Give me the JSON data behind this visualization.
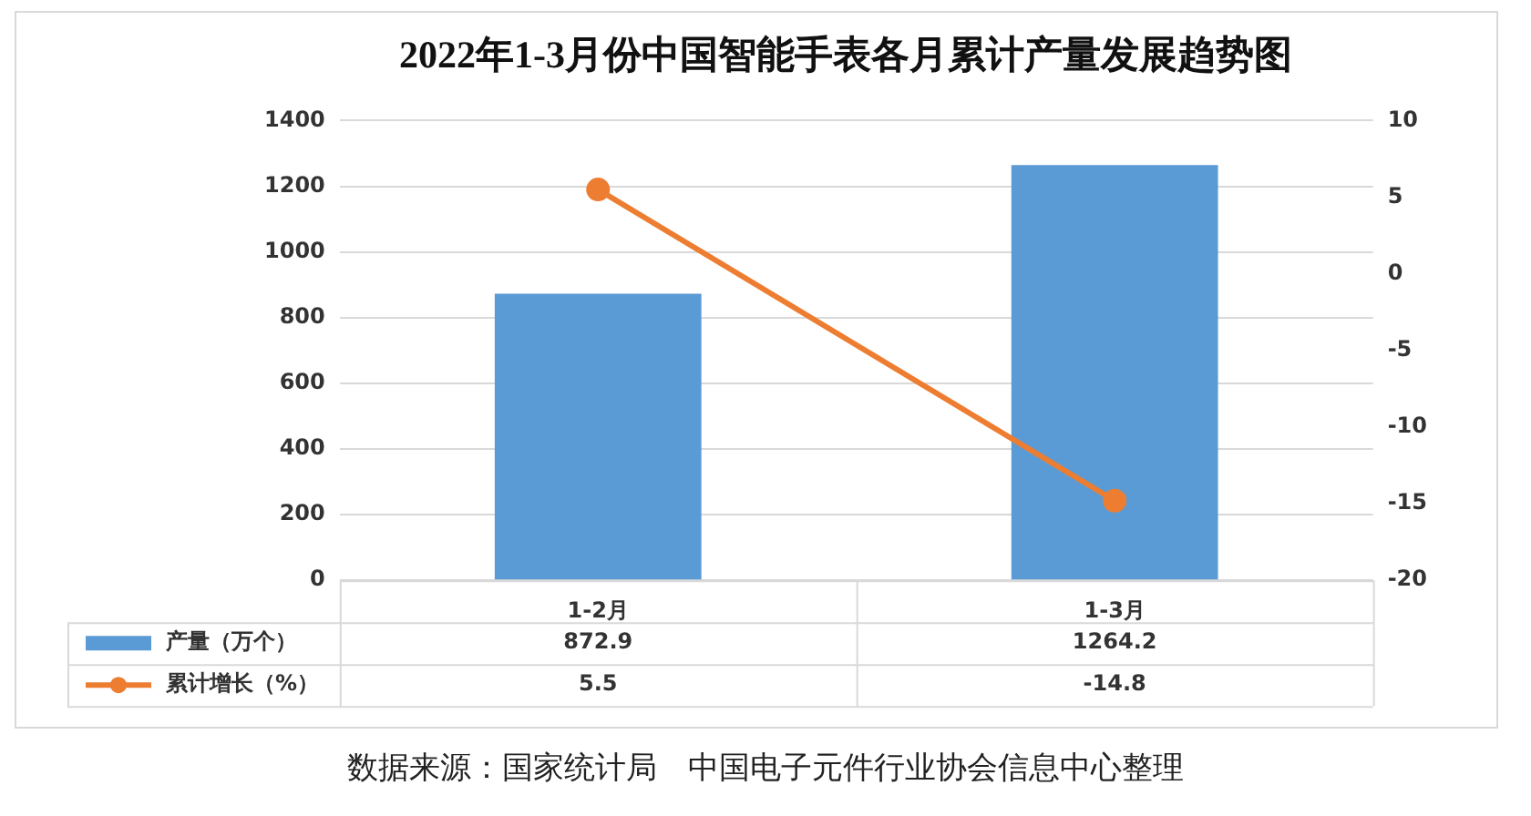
{
  "chart_data": {
    "type": "bar",
    "title": "2022年1-3月份中国智能手表各月累计产量发展趋势图",
    "categories": [
      "1-2月",
      "1-3月"
    ],
    "series": [
      {
        "name": "产量（万个）",
        "color": "#5b9bd5",
        "values": [
          872.9,
          1264.2
        ]
      },
      {
        "name": "累计增长（%）",
        "type": "line",
        "axis": "y2",
        "color": "#ed7d31",
        "marker": "circle",
        "values": [
          5.5,
          -14.8
        ]
      }
    ],
    "ylim": [
      0,
      1400
    ],
    "yticks": [
      0,
      200,
      400,
      600,
      800,
      1000,
      1200,
      1400
    ],
    "y2lim": [
      -20,
      10
    ],
    "y2ticks": [
      -20,
      -15,
      -10,
      -5,
      0,
      5,
      10
    ],
    "grid": "y",
    "legend": "bottom",
    "data_labels": true,
    "annotations": [
      "数据来源：国家统计局　中国电子元件行业协会信息中心整理"
    ]
  }
}
